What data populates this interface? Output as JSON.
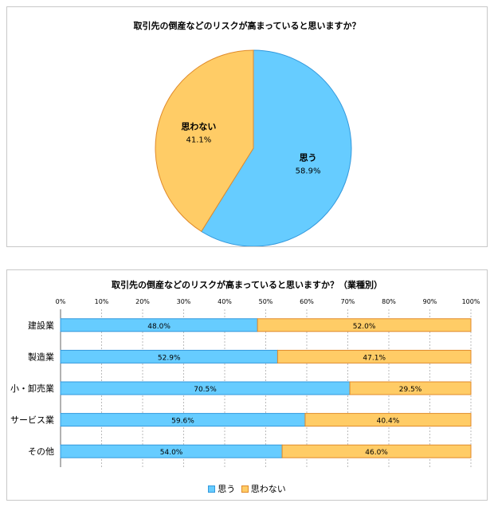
{
  "colors": {
    "yes_fill": "#66ccff",
    "yes_stroke": "#3399dd",
    "no_fill": "#ffcc66",
    "no_stroke": "#e08a2a",
    "grid": "#bbbbbb",
    "axis": "#666666"
  },
  "chart_data": [
    {
      "type": "pie",
      "title": "取引先の倒産などのリスクが高まっていると思いますか？",
      "slices": [
        {
          "name": "思う",
          "value": 58.9,
          "label": "58.9%"
        },
        {
          "name": "思わない",
          "value": 41.1,
          "label": "41.1%"
        }
      ]
    },
    {
      "type": "bar",
      "orientation": "horizontal",
      "stacked": "percent",
      "title": "取引先の倒産などのリスクが高まっていると思いますか？（業種別）",
      "categories": [
        "建設業",
        "製造業",
        "小・卸売業",
        "サービス業",
        "その他"
      ],
      "series": [
        {
          "name": "思う",
          "values": [
            48.0,
            52.9,
            70.5,
            59.6,
            54.0
          ],
          "labels": [
            "48.0%",
            "52.9%",
            "70.5%",
            "59.6%",
            "54.0%"
          ]
        },
        {
          "name": "思わない",
          "values": [
            52.0,
            47.1,
            29.5,
            40.4,
            46.0
          ],
          "labels": [
            "52.0%",
            "47.1%",
            "29.5%",
            "40.4%",
            "46.0%"
          ]
        }
      ],
      "xlim": [
        0,
        100
      ],
      "x_ticks": [
        "0%",
        "10%",
        "20%",
        "30%",
        "40%",
        "50%",
        "60%",
        "70%",
        "80%",
        "90%",
        "100%"
      ],
      "grid": true,
      "legend": "bottom"
    }
  ]
}
